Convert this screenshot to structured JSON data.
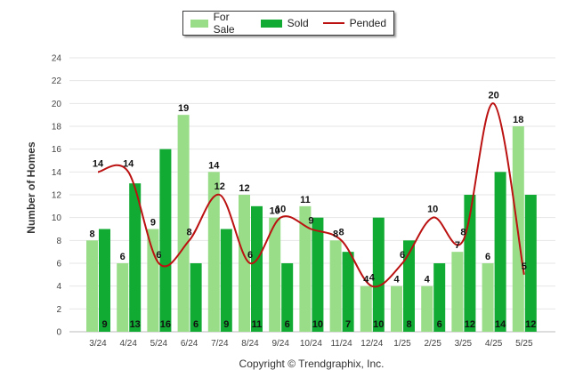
{
  "chart_data": {
    "type": "bar",
    "categories": [
      "3/24",
      "4/24",
      "5/24",
      "6/24",
      "7/24",
      "8/24",
      "9/24",
      "10/24",
      "11/24",
      "12/24",
      "1/25",
      "2/25",
      "3/25",
      "4/25",
      "5/25"
    ],
    "series": [
      {
        "name": "For Sale",
        "type": "bar",
        "color": "#99dd88",
        "values": [
          8,
          6,
          9,
          19,
          14,
          12,
          10,
          11,
          8,
          4,
          4,
          4,
          7,
          6,
          18
        ]
      },
      {
        "name": "Sold",
        "type": "bar",
        "color": "#11aa33",
        "values": [
          9,
          13,
          16,
          6,
          9,
          11,
          6,
          10,
          7,
          10,
          8,
          6,
          12,
          14,
          12
        ]
      },
      {
        "name": "Pended",
        "type": "line",
        "color": "#bb1111",
        "values": [
          14,
          14,
          6,
          8,
          12,
          6,
          10,
          9,
          8,
          4,
          6,
          10,
          8,
          20,
          5
        ]
      }
    ],
    "ylabel": "Number of Homes",
    "ylim": [
      0,
      24
    ],
    "yticks": [
      0,
      2,
      4,
      6,
      8,
      10,
      12,
      14,
      16,
      18,
      20,
      22,
      24
    ],
    "grid": true,
    "legend_position": "top-center"
  },
  "legend": {
    "for_sale": "For Sale",
    "sold": "Sold",
    "pended": "Pended"
  },
  "footer": "Copyright © Trendgraphix, Inc."
}
